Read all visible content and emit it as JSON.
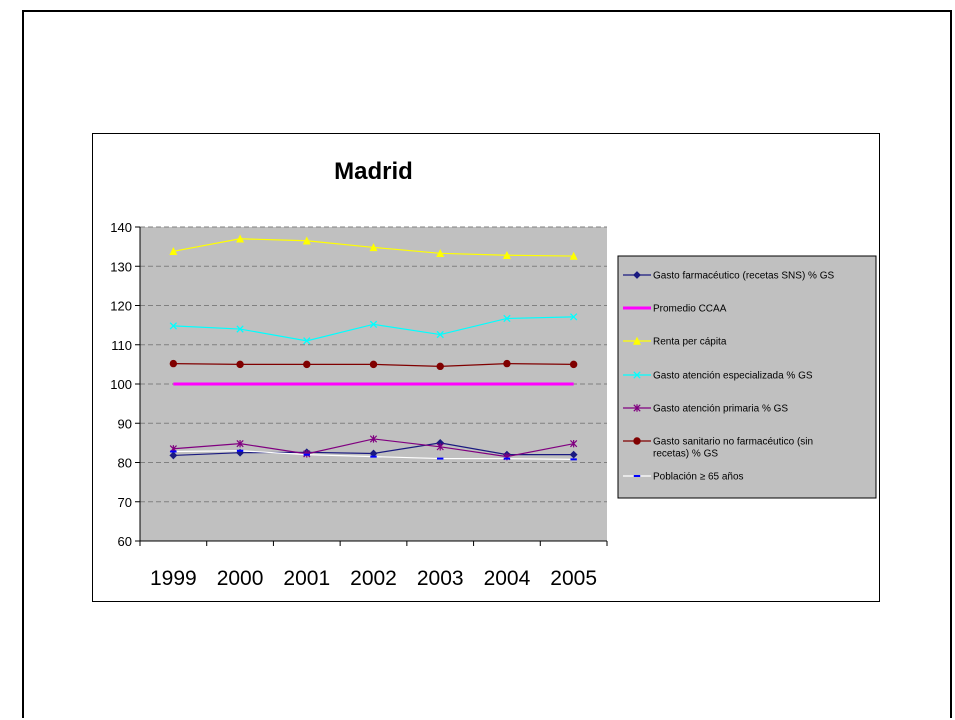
{
  "chart_data": {
    "type": "line",
    "title": "Madrid",
    "xlabel": "",
    "ylabel": "",
    "categories": [
      "1999",
      "2000",
      "2001",
      "2002",
      "2003",
      "2004",
      "2005"
    ],
    "ylim": [
      60,
      140
    ],
    "yticks": [
      60,
      70,
      80,
      90,
      100,
      110,
      120,
      130,
      140
    ],
    "grid": "horizontal dashed",
    "plot_background": "#c0c0c0",
    "legend_position": "right",
    "series": [
      {
        "name": "Gasto farmacéutico (recetas SNS) % GS",
        "color": "#1a1a80",
        "marker": "diamond",
        "values": [
          81.8,
          82.5,
          82.6,
          82.3,
          85.0,
          82.0,
          82.0
        ]
      },
      {
        "name": "Promedio CCAA",
        "color": "#ff00ff",
        "marker": "none",
        "values": [
          100,
          100,
          100,
          100,
          100,
          100,
          100
        ]
      },
      {
        "name": "Renta per cápita",
        "color": "#ffff00",
        "marker": "triangle",
        "values": [
          133.8,
          137.0,
          136.5,
          134.8,
          133.3,
          132.8,
          132.6
        ]
      },
      {
        "name": "Gasto atención especializada % GS",
        "color": "#00ffff",
        "marker": "x",
        "values": [
          114.8,
          114.0,
          111.0,
          115.2,
          112.6,
          116.7,
          117.1
        ]
      },
      {
        "name": "Gasto atención primaria % GS",
        "color": "#800080",
        "marker": "star",
        "values": [
          83.5,
          84.8,
          82.2,
          86.0,
          84.0,
          81.5,
          84.8
        ]
      },
      {
        "name": "Gasto sanitario no farmacéutico (sin recetas) % GS",
        "color": "#800000",
        "marker": "circle",
        "values": [
          105.2,
          105.0,
          105.0,
          105.0,
          104.5,
          105.2,
          105.0
        ]
      },
      {
        "name": "Población ≥ 65 años",
        "color": "#ffffff",
        "marker": "dash",
        "values": [
          82.8,
          83.0,
          82.0,
          81.5,
          81.0,
          81.0,
          80.8
        ]
      }
    ]
  }
}
